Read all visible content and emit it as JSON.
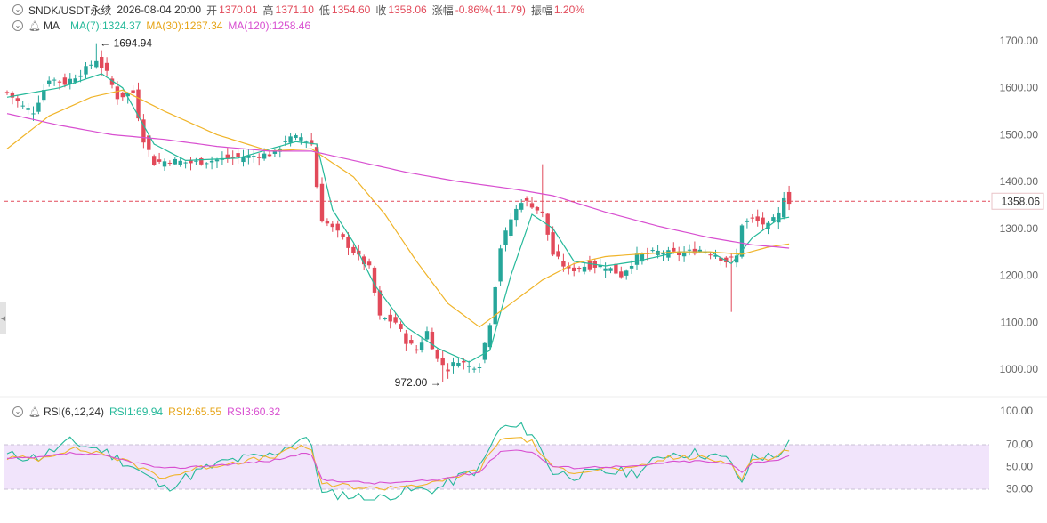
{
  "header": {
    "symbol": "SNDK/USDT永续",
    "datetime": "2026-08-04 20:00",
    "open_label": "开",
    "open": "1370.01",
    "high_label": "高",
    "high": "1371.10",
    "low_label": "低",
    "low": "1354.60",
    "close_label": "收",
    "close": "1358.06",
    "change_label": "涨幅",
    "change": "-0.86%(-11.79)",
    "amp_label": "振幅",
    "amp": "1.20%"
  },
  "ma_legend": {
    "name": "MA",
    "ma7": "MA(7):1324.37",
    "ma30": "MA(30):1267.34",
    "ma120": "MA(120):1258.46"
  },
  "rsi_legend": {
    "name": "RSI(6,12,24)",
    "rsi1": "RSI1:69.94",
    "rsi2": "RSI2:65.55",
    "rsi3": "RSI3:60.32"
  },
  "colors": {
    "up": "#26a69a",
    "down": "#e24a5a",
    "ma7": "#26b99a",
    "ma30": "#f0b429",
    "ma120": "#d84fd0",
    "last_price_line": "#e24a5a",
    "rsi_band": "#f1e4fb"
  },
  "chart_data": [
    {
      "type": "candlestick",
      "ylim": [
        950,
        1730
      ],
      "y_ticks": [
        "1700.00",
        "1600.00",
        "1500.00",
        "1400.00",
        "1300.00",
        "1200.00",
        "1100.00",
        "1000.00"
      ],
      "y_tick_values": [
        1700,
        1600,
        1500,
        1400,
        1300,
        1200,
        1100,
        1000
      ],
      "last_price": "1358.06",
      "last_price_value": 1358.06,
      "high_marker": {
        "label": "1694.94",
        "value": 1694.94,
        "index": 17
      },
      "low_marker": {
        "label": "972.00",
        "value": 972.0,
        "index": 83
      },
      "anchors": [
        [
          0,
          1590
        ],
        [
          3,
          1560
        ],
        [
          5,
          1550
        ],
        [
          8,
          1620
        ],
        [
          11,
          1610
        ],
        [
          15,
          1640
        ],
        [
          17,
          1660
        ],
        [
          19,
          1630
        ],
        [
          21,
          1580
        ],
        [
          24,
          1590
        ],
        [
          26,
          1490
        ],
        [
          28,
          1440
        ],
        [
          31,
          1445
        ],
        [
          35,
          1440
        ],
        [
          39,
          1445
        ],
        [
          43,
          1450
        ],
        [
          47,
          1455
        ],
        [
          51,
          1460
        ],
        [
          53,
          1490
        ],
        [
          56,
          1495
        ],
        [
          58,
          1480
        ],
        [
          59,
          1390
        ],
        [
          60,
          1320
        ],
        [
          63,
          1290
        ],
        [
          66,
          1250
        ],
        [
          69,
          1215
        ],
        [
          71,
          1110
        ],
        [
          74,
          1100
        ],
        [
          76,
          1060
        ],
        [
          78,
          1040
        ],
        [
          80,
          1080
        ],
        [
          82,
          1020
        ],
        [
          84,
          1000
        ],
        [
          86,
          1020
        ],
        [
          88,
          1005
        ],
        [
          90,
          1010
        ],
        [
          92,
          1100
        ],
        [
          94,
          1260
        ],
        [
          96,
          1320
        ],
        [
          98,
          1360
        ],
        [
          100,
          1350
        ],
        [
          102,
          1330
        ],
        [
          104,
          1245
        ],
        [
          107,
          1210
        ],
        [
          110,
          1220
        ],
        [
          114,
          1220
        ],
        [
          117,
          1200
        ],
        [
          120,
          1240
        ],
        [
          124,
          1250
        ],
        [
          128,
          1245
        ],
        [
          132,
          1255
        ],
        [
          135,
          1245
        ],
        [
          137,
          1230
        ],
        [
          139,
          1240
        ],
        [
          140,
          1310
        ],
        [
          142,
          1320
        ],
        [
          145,
          1305
        ],
        [
          147,
          1330
        ],
        [
          148,
          1370
        ],
        [
          149,
          1358
        ]
      ],
      "ma7": [
        [
          0,
          1580
        ],
        [
          10,
          1600
        ],
        [
          18,
          1630
        ],
        [
          22,
          1600
        ],
        [
          28,
          1480
        ],
        [
          34,
          1445
        ],
        [
          44,
          1450
        ],
        [
          55,
          1485
        ],
        [
          59,
          1480
        ],
        [
          62,
          1340
        ],
        [
          66,
          1270
        ],
        [
          70,
          1180
        ],
        [
          76,
          1090
        ],
        [
          82,
          1045
        ],
        [
          88,
          1015
        ],
        [
          92,
          1040
        ],
        [
          96,
          1200
        ],
        [
          100,
          1330
        ],
        [
          104,
          1300
        ],
        [
          108,
          1230
        ],
        [
          114,
          1220
        ],
        [
          120,
          1230
        ],
        [
          128,
          1250
        ],
        [
          134,
          1250
        ],
        [
          138,
          1225
        ],
        [
          142,
          1280
        ],
        [
          147,
          1320
        ],
        [
          149,
          1324
        ]
      ],
      "ma30": [
        [
          0,
          1470
        ],
        [
          8,
          1540
        ],
        [
          16,
          1580
        ],
        [
          22,
          1595
        ],
        [
          30,
          1550
        ],
        [
          40,
          1500
        ],
        [
          50,
          1465
        ],
        [
          58,
          1470
        ],
        [
          66,
          1410
        ],
        [
          72,
          1330
        ],
        [
          78,
          1230
        ],
        [
          84,
          1140
        ],
        [
          90,
          1090
        ],
        [
          96,
          1140
        ],
        [
          102,
          1190
        ],
        [
          108,
          1225
        ],
        [
          114,
          1240
        ],
        [
          120,
          1245
        ],
        [
          128,
          1250
        ],
        [
          134,
          1250
        ],
        [
          140,
          1245
        ],
        [
          145,
          1260
        ],
        [
          149,
          1267
        ]
      ],
      "ma120": [
        [
          0,
          1545
        ],
        [
          10,
          1520
        ],
        [
          20,
          1500
        ],
        [
          30,
          1490
        ],
        [
          40,
          1475
        ],
        [
          50,
          1465
        ],
        [
          58,
          1465
        ],
        [
          66,
          1445
        ],
        [
          76,
          1420
        ],
        [
          86,
          1400
        ],
        [
          96,
          1385
        ],
        [
          104,
          1370
        ],
        [
          114,
          1335
        ],
        [
          124,
          1305
        ],
        [
          134,
          1280
        ],
        [
          142,
          1265
        ],
        [
          149,
          1258
        ]
      ]
    },
    {
      "type": "line",
      "title": "RSI(6,12,24)",
      "ylim": [
        20,
        108
      ],
      "y_ticks": [
        "100.00",
        "70.00",
        "50.00",
        "30.00"
      ],
      "y_tick_values": [
        100,
        70,
        50,
        30
      ],
      "band": [
        30,
        70
      ],
      "series": [
        {
          "name": "RSI1",
          "points": [
            [
              0,
              60
            ],
            [
              6,
              58
            ],
            [
              12,
              72
            ],
            [
              18,
              65
            ],
            [
              24,
              50
            ],
            [
              30,
              30
            ],
            [
              36,
              45
            ],
            [
              42,
              55
            ],
            [
              50,
              60
            ],
            [
              56,
              75
            ],
            [
              58,
              70
            ],
            [
              60,
              25
            ],
            [
              64,
              25
            ],
            [
              70,
              20
            ],
            [
              76,
              28
            ],
            [
              82,
              30
            ],
            [
              86,
              40
            ],
            [
              90,
              48
            ],
            [
              94,
              85
            ],
            [
              98,
              85
            ],
            [
              100,
              80
            ],
            [
              104,
              45
            ],
            [
              108,
              42
            ],
            [
              114,
              45
            ],
            [
              120,
              45
            ],
            [
              126,
              62
            ],
            [
              132,
              62
            ],
            [
              138,
              55
            ],
            [
              140,
              32
            ],
            [
              142,
              60
            ],
            [
              146,
              58
            ],
            [
              149,
              70
            ]
          ]
        },
        {
          "name": "RSI2",
          "points": [
            [
              0,
              58
            ],
            [
              6,
              57
            ],
            [
              12,
              66
            ],
            [
              18,
              62
            ],
            [
              24,
              52
            ],
            [
              30,
              40
            ],
            [
              36,
              48
            ],
            [
              42,
              53
            ],
            [
              50,
              58
            ],
            [
              56,
              68
            ],
            [
              58,
              66
            ],
            [
              60,
              33
            ],
            [
              64,
              33
            ],
            [
              70,
              30
            ],
            [
              76,
              33
            ],
            [
              82,
              35
            ],
            [
              86,
              42
            ],
            [
              90,
              47
            ],
            [
              94,
              75
            ],
            [
              98,
              76
            ],
            [
              100,
              72
            ],
            [
              104,
              48
            ],
            [
              108,
              46
            ],
            [
              114,
              48
            ],
            [
              120,
              48
            ],
            [
              126,
              58
            ],
            [
              132,
              58
            ],
            [
              138,
              53
            ],
            [
              140,
              40
            ],
            [
              142,
              57
            ],
            [
              146,
              57
            ],
            [
              149,
              66
            ]
          ]
        },
        {
          "name": "RSI3",
          "points": [
            [
              0,
              57
            ],
            [
              6,
              58
            ],
            [
              12,
              62
            ],
            [
              18,
              60
            ],
            [
              24,
              54
            ],
            [
              30,
              48
            ],
            [
              36,
              50
            ],
            [
              42,
              52
            ],
            [
              50,
              55
            ],
            [
              56,
              61
            ],
            [
              58,
              61
            ],
            [
              60,
              38
            ],
            [
              64,
              37
            ],
            [
              70,
              35
            ],
            [
              76,
              36
            ],
            [
              82,
              38
            ],
            [
              86,
              42
            ],
            [
              90,
              45
            ],
            [
              94,
              64
            ],
            [
              98,
              65
            ],
            [
              100,
              63
            ],
            [
              104,
              50
            ],
            [
              108,
              49
            ],
            [
              114,
              50
            ],
            [
              120,
              50
            ],
            [
              126,
              54
            ],
            [
              132,
              55
            ],
            [
              138,
              52
            ],
            [
              140,
              45
            ],
            [
              142,
              54
            ],
            [
              146,
              55
            ],
            [
              149,
              60
            ]
          ]
        }
      ]
    }
  ]
}
